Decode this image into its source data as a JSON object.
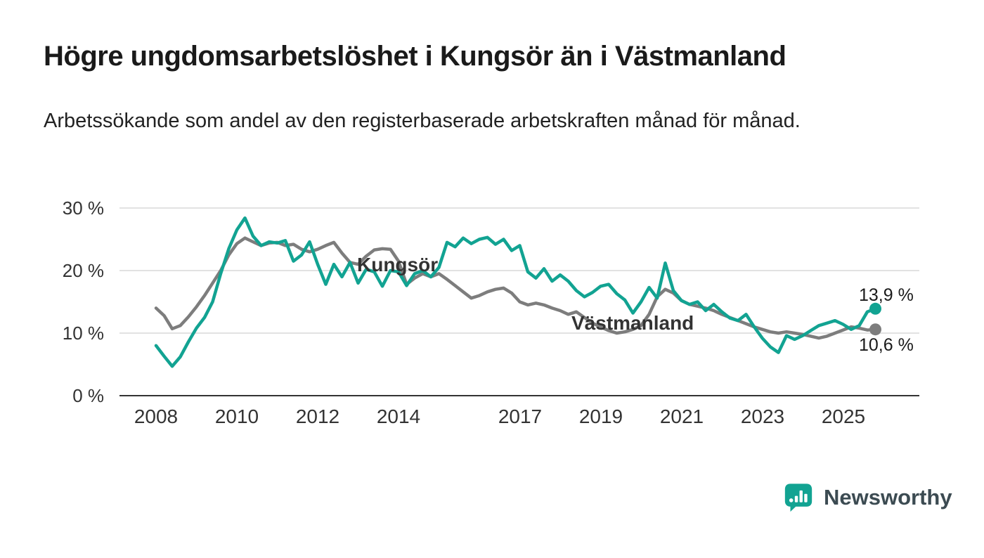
{
  "header": {
    "title": "Högre ungdomsarbetslöshet i Kungsör än i Västmanland",
    "subtitle": "Arbetssökande som andel av den registerbaserade arbetskraften månad för månad."
  },
  "chart_data": {
    "type": "line",
    "title": "Högre ungdomsarbetslöshet i Kungsör än i Västmanland",
    "subtitle": "Arbetssökande som andel av den registerbaserade arbetskraften månad för månad.",
    "xlabel": "",
    "ylabel": "",
    "y_unit": "%",
    "ylim": [
      0,
      30
    ],
    "xlim": [
      2007.5,
      2026.3
    ],
    "grid": "horizontal",
    "legend_position": "inline-labels",
    "ytick_values": [
      30,
      20,
      10,
      0
    ],
    "ytick_labels": [
      "30 %",
      "20 %",
      "10 %",
      "0 %"
    ],
    "xtick_values": [
      2008,
      2010,
      2012,
      2014,
      2017,
      2019,
      2021,
      2023,
      2025
    ],
    "xtick_labels": [
      "2008",
      "2010",
      "2012",
      "2014",
      "2017",
      "2019",
      "2021",
      "2023",
      "2025"
    ],
    "x": [
      2008,
      2008.2,
      2008.4,
      2008.6,
      2008.8,
      2009,
      2009.2,
      2009.4,
      2009.6,
      2009.8,
      2010,
      2010.2,
      2010.4,
      2010.6,
      2010.8,
      2011,
      2011.2,
      2011.4,
      2011.6,
      2011.8,
      2012,
      2012.2,
      2012.4,
      2012.6,
      2012.8,
      2013,
      2013.2,
      2013.4,
      2013.6,
      2013.8,
      2014,
      2014.2,
      2014.4,
      2014.6,
      2014.8,
      2015,
      2015.2,
      2015.4,
      2015.6,
      2015.8,
      2016,
      2016.2,
      2016.4,
      2016.6,
      2016.8,
      2017,
      2017.2,
      2017.4,
      2017.6,
      2017.8,
      2018,
      2018.2,
      2018.4,
      2018.6,
      2018.8,
      2019,
      2019.2,
      2019.4,
      2019.6,
      2019.8,
      2020,
      2020.2,
      2020.4,
      2020.6,
      2020.8,
      2021,
      2021.2,
      2021.4,
      2021.6,
      2021.8,
      2022,
      2022.2,
      2022.4,
      2022.6,
      2022.8,
      2023,
      2023.2,
      2023.4,
      2023.6,
      2023.8,
      2024,
      2024.2,
      2024.4,
      2024.6,
      2024.8,
      2025,
      2025.2,
      2025.4,
      2025.6,
      2025.8
    ],
    "series": [
      {
        "name": "Kungsör",
        "color": "#12a392",
        "end_label": "13,9 %",
        "end_value": 13.9,
        "values": [
          8,
          6.3,
          4.7,
          6.2,
          8.6,
          10.8,
          12.5,
          15,
          19.5,
          23.5,
          26.5,
          28.4,
          25.5,
          24,
          24.6,
          24.4,
          24.8,
          21.5,
          22.5,
          24.6,
          21,
          17.8,
          21,
          19,
          21.3,
          18,
          20.2,
          19.8,
          17.5,
          20,
          19.8,
          17.6,
          19.5,
          20,
          19,
          20.5,
          24.5,
          23.8,
          25.2,
          24.3,
          25,
          25.3,
          24.2,
          25,
          23.2,
          24,
          19.8,
          18.8,
          20.3,
          18.3,
          19.3,
          18.3,
          16.8,
          15.8,
          16.5,
          17.5,
          17.8,
          16.3,
          15.3,
          13.2,
          15,
          17.3,
          15.6,
          21.2,
          16.8,
          15.2,
          14.6,
          15,
          13.6,
          14.6,
          13.4,
          12.4,
          12,
          13,
          11,
          9.2,
          7.8,
          6.9,
          9.6,
          9,
          9.6,
          10.4,
          11.2,
          11.6,
          12,
          11.4,
          10.6,
          11.2,
          13.4,
          13.9
        ]
      },
      {
        "name": "Västmanland",
        "color": "#7d7d7d",
        "end_label": "10,6 %",
        "end_value": 10.6,
        "values": [
          14,
          12.8,
          10.7,
          11.2,
          12.6,
          14.2,
          16,
          18,
          20,
          22.5,
          24.3,
          25.2,
          24.6,
          24,
          24.4,
          24.5,
          24,
          24.2,
          23.4,
          23,
          23.4,
          24,
          24.5,
          22.8,
          21.3,
          21,
          22.3,
          23.3,
          23.5,
          23.4,
          21.5,
          17.8,
          18.8,
          19.5,
          19,
          19.5,
          18.6,
          17.6,
          16.6,
          15.6,
          16,
          16.6,
          17,
          17.2,
          16.4,
          15,
          14.5,
          14.8,
          14.5,
          14,
          13.6,
          13,
          13.4,
          12.5,
          11.6,
          11,
          10.4,
          10,
          10.2,
          10.6,
          11.2,
          13,
          15.8,
          17,
          16.4,
          15.2,
          14.6,
          14.3,
          14,
          13.6,
          13,
          12.5,
          12,
          11.5,
          11,
          10.6,
          10.2,
          10,
          10.2,
          10,
          9.8,
          9.5,
          9.2,
          9.5,
          10,
          10.5,
          11,
          10.8,
          10.5,
          10.6
        ]
      }
    ]
  },
  "branding": {
    "logo_text": "Newsworthy",
    "logo_color": "#12a392",
    "logo_text_color": "#3c4b52"
  }
}
